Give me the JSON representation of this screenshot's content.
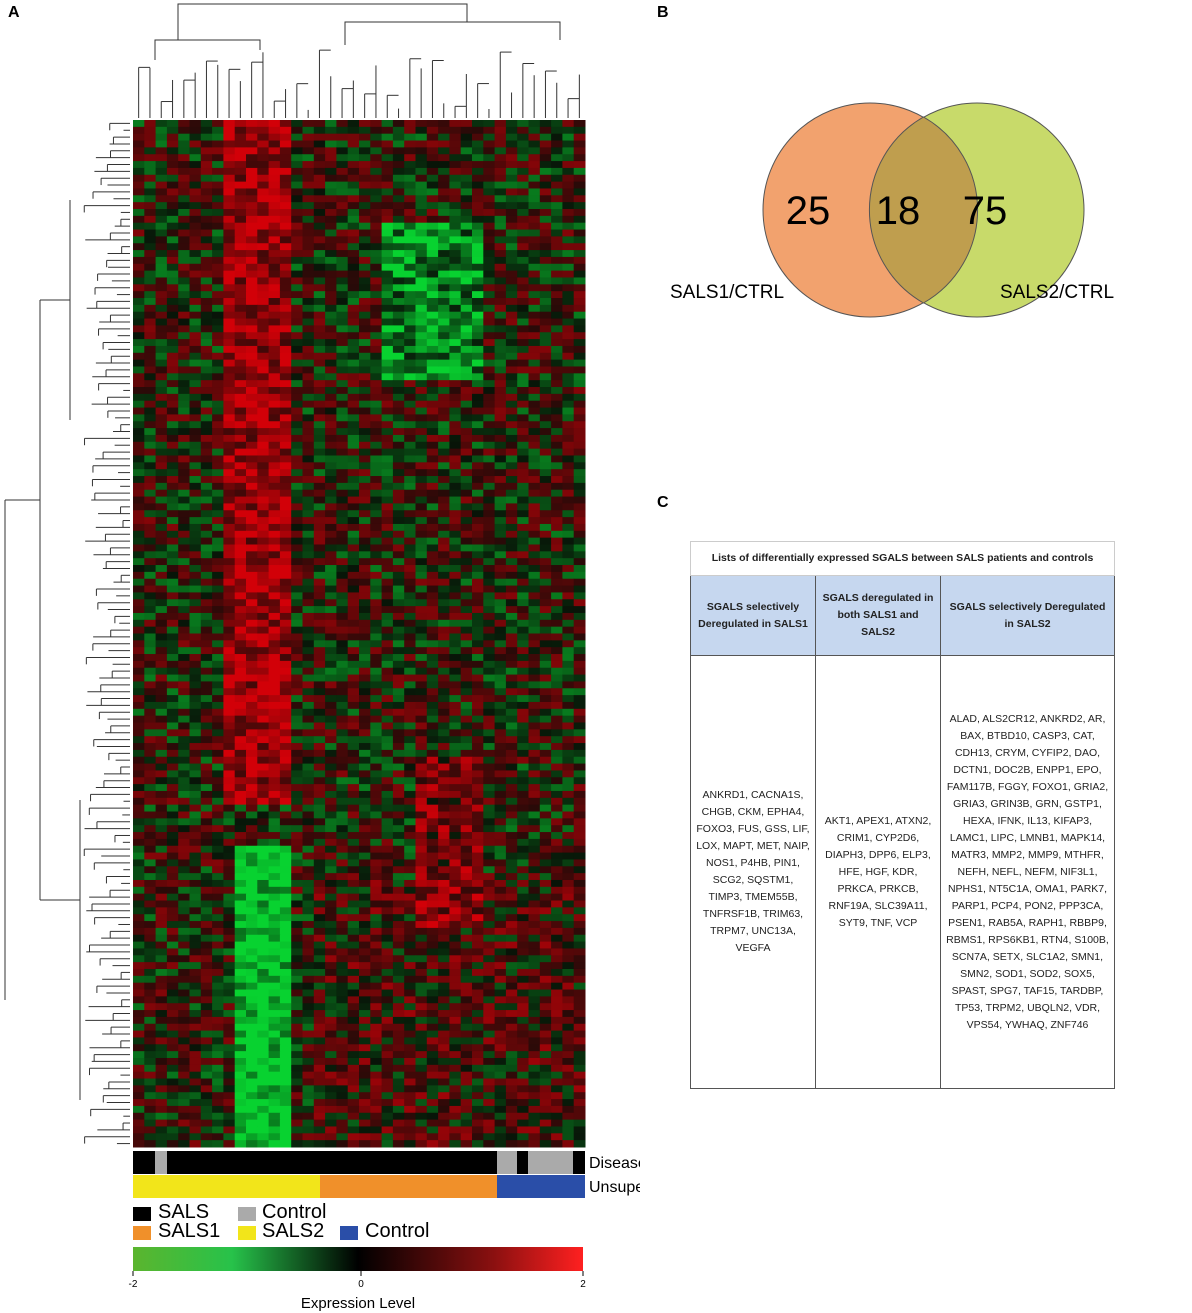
{
  "panels": {
    "a": "A",
    "b": "B",
    "c": "C"
  },
  "heatmap": {
    "annotation_rows": [
      "Disease State",
      "Unsupervised Cluster"
    ],
    "legend_disease": [
      "SALS",
      "Control"
    ],
    "legend_cluster": [
      "SALS1",
      "SALS2",
      "Control"
    ],
    "colorbar_ticks": [
      -2,
      0,
      2
    ],
    "colorbar_label": "Expression Level"
  },
  "venn": {
    "left_only": "25",
    "overlap": "18",
    "right_only": "75",
    "left_label": "SALS1/CTRL",
    "right_label": "SALS2/CTRL"
  },
  "table": {
    "title": "Lists of differentially expressed SGALS between SALS patients and controls",
    "headers": [
      "SGALS selectively Deregulated in SALS1",
      "SGALS deregulated in both SALS1 and SALS2",
      "SGALS selectively Deregulated in SALS2"
    ],
    "cells": [
      "ANKRD1, CACNA1S, CHGB, CKM, EPHA4, FOXO3, FUS, GSS, LIF, LOX, MAPT, MET, NAIP, NOS1, P4HB, PIN1, SCG2, SQSTM1, TIMP3, TMEM55B, TNFRSF1B, TRIM63, TRPM7, UNC13A, VEGFA",
      "AKT1, APEX1, ATXN2, CRIM1, CYP2D6, DIAPH3, DPP6, ELP3, HFE, HGF, KDR, PRKCA, PRKCB, RNF19A, SLC39A11, SYT9, TNF, VCP",
      "ALAD, ALS2CR12, ANKRD2, AR, BAX, BTBD10, CASP3, CAT, CDH13, CRYM, CYFIP2, DAO, DCTN1, DOC2B, ENPP1, EPO, FAM117B, FGGY, FOXO1, GRIA2, GRIA3, GRIN3B, GRN, GSTP1, HEXA, IFNK, IL13, KIFAP3, LAMC1, LIPC, LMNB1, MAPK14, MATR3, MMP2, MMP9, MTHFR, NEFH, NEFL, NEFM, NIF3L1, NPHS1, NT5C1A, OMA1, PARK7, PARP1, PCP4, PON2, PPP3CA, PSEN1, RAB5A, RAPH1, RBBP9, RBMS1, RPS6KB1, RTN4, S100B, SCN7A, SETX, SLC1A2, SMN1, SMN2, SOD1, SOD2, SOX5, SPAST, SPG7, TAF15, TARDBP, TP53, TRPM2, UBQLN2, VDR, VPS54, YWHAQ, ZNF746"
    ]
  }
}
